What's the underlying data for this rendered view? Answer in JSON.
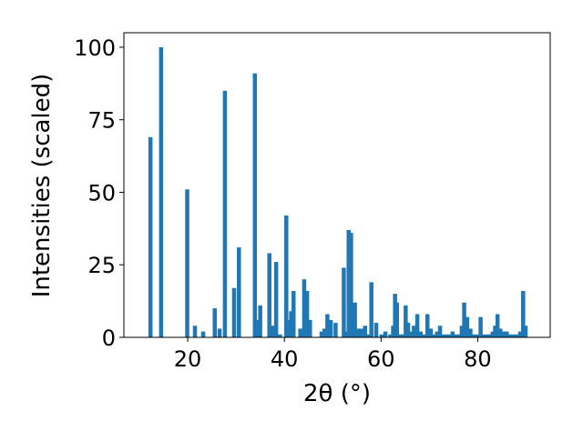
{
  "chart_data": {
    "type": "bar",
    "title": "",
    "xlabel": "2θ (°)",
    "ylabel": "Intensities (scaled)",
    "xlim": [
      6.8,
      95
    ],
    "ylim": [
      0,
      105
    ],
    "xticks": [
      20,
      40,
      60,
      80
    ],
    "yticks": [
      0,
      25,
      50,
      75,
      100
    ],
    "grid": false,
    "legend": "none",
    "color": "#1f77b4",
    "bar_width": 0.85,
    "series": [
      {
        "x": [
          12.3,
          14.5,
          19.9,
          21.5,
          23.2,
          25.6,
          26.6,
          27.7,
          29.6,
          30.6,
          33.9,
          34.4,
          35.0,
          36.9,
          37.7,
          38.3,
          39.1,
          40.4,
          40.8,
          41.4,
          41.9,
          43.3,
          44.1,
          44.7,
          45.3,
          47.7,
          48.3,
          48.9,
          49.6,
          50.6,
          52.3,
          52.9,
          53.3,
          53.8,
          54.6,
          55.3,
          56.0,
          56.7,
          57.2,
          58.0,
          59.0,
          60.1,
          60.9,
          61.9,
          62.5,
          62.9,
          63.3,
          64.0,
          64.6,
          65.1,
          65.6,
          66.2,
          66.8,
          67.5,
          68.2,
          68.9,
          69.6,
          70.3,
          71.0,
          71.6,
          72.2,
          72.8,
          73.5,
          74.1,
          74.8,
          75.5,
          76.1,
          76.7,
          77.2,
          77.8,
          78.5,
          79.2,
          79.9,
          80.6,
          81.3,
          82.1,
          82.6,
          83.1,
          83.6,
          84.1,
          84.7,
          85.4,
          86.0,
          86.7,
          87.4,
          88.1,
          88.8,
          89.4,
          89.9
        ],
        "values": [
          69,
          100,
          51,
          4,
          2,
          10,
          3,
          85,
          17,
          31,
          91,
          6,
          11,
          29,
          4,
          26,
          1,
          42,
          6,
          9,
          16,
          3,
          20,
          16,
          6,
          2,
          3,
          8,
          6,
          5,
          24,
          2,
          37,
          36,
          12,
          3,
          3,
          4,
          1,
          19,
          5,
          1,
          2,
          1,
          4,
          15,
          12,
          1,
          1,
          11,
          5,
          2,
          4,
          8,
          2,
          1,
          8,
          3,
          1,
          2,
          4,
          1,
          1,
          1,
          2,
          1,
          1,
          4,
          12,
          7,
          3,
          1,
          1,
          7,
          1,
          1,
          1,
          2,
          4,
          8,
          3,
          2,
          2,
          1,
          1,
          1,
          2,
          16,
          4
        ]
      }
    ]
  }
}
